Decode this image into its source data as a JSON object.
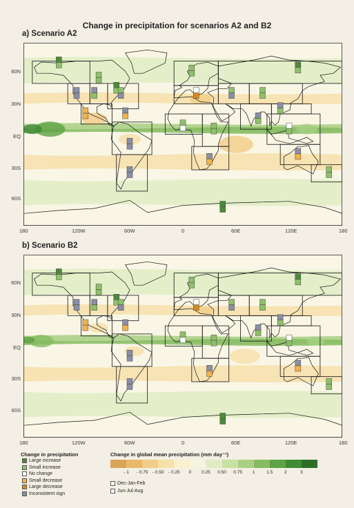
{
  "title": "Change in precipitation for scenarios A2 and B2",
  "panels": [
    {
      "label": "a) Scenario A2"
    },
    {
      "label": "b) Scenario B2"
    }
  ],
  "axis": {
    "lat_labels": [
      "60N",
      "30N",
      "EQ",
      "30S",
      "60S"
    ],
    "lon_labels": [
      "180",
      "120W",
      "60W",
      "0",
      "60E",
      "120E",
      "180"
    ]
  },
  "legend": {
    "title": "Change in precipitation",
    "items": [
      {
        "label": "Large increase",
        "color": "#4d8a3a"
      },
      {
        "label": "Small increase",
        "color": "#8fc06a"
      },
      {
        "label": "No change",
        "color": "#ffffff"
      },
      {
        "label": "Small decrease",
        "color": "#f2b24b"
      },
      {
        "label": "Large decrease",
        "color": "#d98a1e"
      },
      {
        "label": "Inconsistent sign",
        "color": "#8a8fa3"
      }
    ]
  },
  "colorbar": {
    "title": "Change in global mean precipitation (mm day⁻¹)",
    "labels": [
      "- 1",
      "- 0.75",
      "- 0.50",
      "- 0.25",
      "0",
      "0.25",
      "0.50",
      "0.75",
      "1",
      "1.5",
      "2",
      "3"
    ],
    "colors": [
      "#d9a456",
      "#e9b969",
      "#f2cd86",
      "#f7dfa9",
      "#fbf0cf",
      "#f4f4e0",
      "#e0edc4",
      "#c8e1a2",
      "#a8cf82",
      "#86bb62",
      "#5ea345",
      "#3f8a34",
      "#2c6e28"
    ]
  },
  "season_key": [
    {
      "label": "Dec-Jan-Feb"
    },
    {
      "label": "Jun-Jul-Aug"
    }
  ]
}
